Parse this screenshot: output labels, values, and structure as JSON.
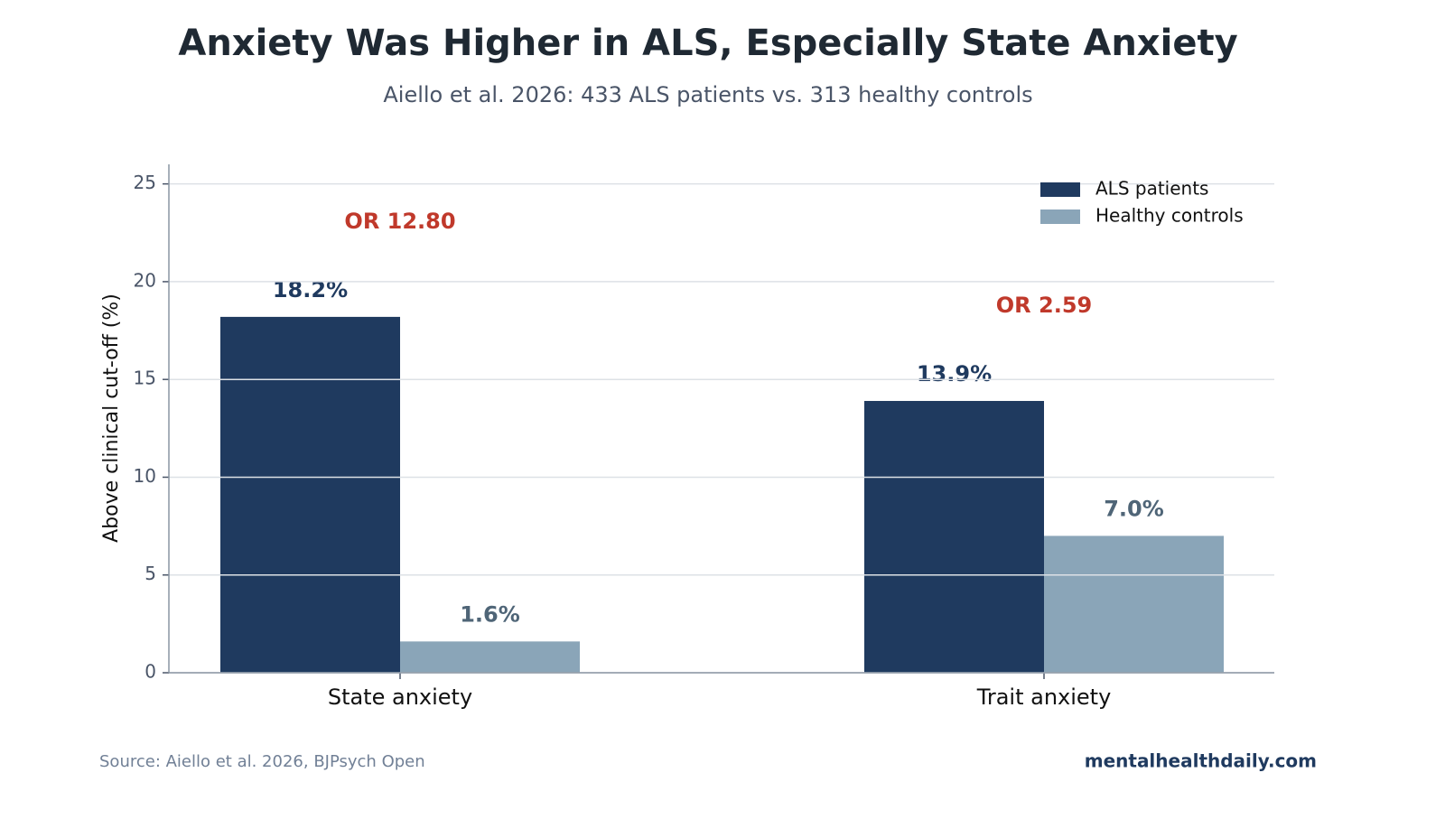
{
  "chart_data": {
    "type": "bar",
    "title": "Anxiety Was Higher in ALS, Especially State Anxiety",
    "subtitle": "Aiello et al. 2026: 433 ALS patients vs. 313 healthy controls",
    "y_label": "Above clinical cut-off (%)",
    "categories": [
      "State anxiety",
      "Trait anxiety"
    ],
    "series": [
      {
        "name": "ALS patients",
        "color": "#1f3a5f",
        "label_color": "#1f3a5f",
        "values": [
          18.2,
          13.9
        ],
        "value_labels": [
          "18.2%",
          "13.9%"
        ]
      },
      {
        "name": "Healthy controls",
        "color": "#8aa5b8",
        "label_color": "#4f6577",
        "values": [
          1.6,
          7.0
        ],
        "value_labels": [
          "1.6%",
          "7.0%"
        ]
      }
    ],
    "annotations": [
      "OR 12.80",
      "OR 2.59"
    ],
    "ylim": [
      0,
      26
    ],
    "yticks": [
      0,
      5,
      10,
      15,
      20,
      25
    ],
    "grid": true,
    "legend": "upper right",
    "source": "Source: Aiello et al. 2026, BJPsych Open",
    "brand": "mentalhealthdaily.com"
  }
}
